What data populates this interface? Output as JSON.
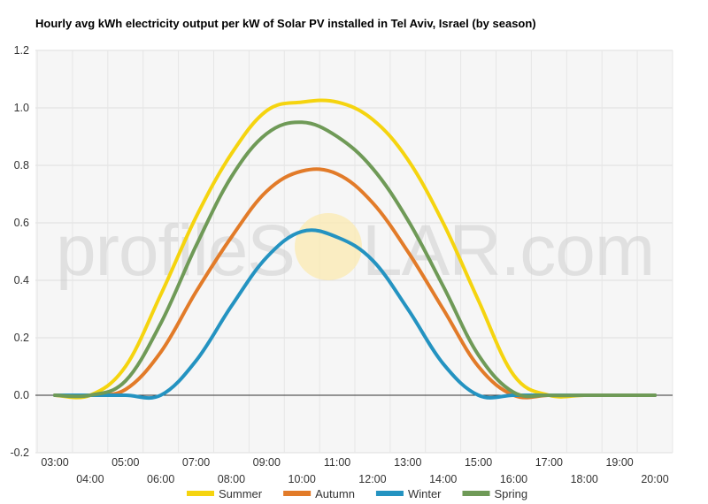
{
  "chart_data": {
    "type": "line",
    "title": "Hourly avg kWh electricity output per kW of Solar PV installed in Tel Aviv, Israel (by season)",
    "xlabel": "",
    "ylabel": "",
    "categories": [
      "03:00",
      "04:00",
      "05:00",
      "06:00",
      "07:00",
      "08:00",
      "09:00",
      "10:00",
      "11:00",
      "12:00",
      "13:00",
      "14:00",
      "15:00",
      "16:00",
      "17:00",
      "18:00",
      "19:00",
      "20:00"
    ],
    "ylim": [
      -0.2,
      1.2
    ],
    "yticks": [
      "-0.2",
      "0.0",
      "0.2",
      "0.4",
      "0.6",
      "0.8",
      "1.0",
      "1.2"
    ],
    "grid": true,
    "legend_position": "bottom",
    "series": [
      {
        "name": "Summer",
        "color": "#f5d40f",
        "values": [
          0.0,
          0.0,
          0.1,
          0.35,
          0.62,
          0.84,
          0.99,
          1.02,
          1.02,
          0.96,
          0.82,
          0.6,
          0.33,
          0.07,
          0.0,
          0.0,
          0.0,
          0.0
        ]
      },
      {
        "name": "Autumn",
        "color": "#e27b29",
        "values": [
          0.0,
          0.0,
          0.02,
          0.15,
          0.36,
          0.55,
          0.71,
          0.78,
          0.77,
          0.67,
          0.5,
          0.3,
          0.1,
          0.0,
          0.0,
          0.0,
          0.0,
          0.0
        ]
      },
      {
        "name": "Winter",
        "color": "#2493c1",
        "values": [
          0.0,
          0.0,
          0.0,
          0.0,
          0.12,
          0.31,
          0.48,
          0.57,
          0.55,
          0.47,
          0.3,
          0.11,
          0.0,
          0.0,
          0.0,
          0.0,
          0.0,
          0.0
        ]
      },
      {
        "name": "Spring",
        "color": "#6f9a57",
        "values": [
          0.0,
          0.0,
          0.05,
          0.25,
          0.52,
          0.76,
          0.91,
          0.95,
          0.9,
          0.79,
          0.61,
          0.38,
          0.14,
          0.01,
          0.0,
          0.0,
          0.0,
          0.0
        ]
      }
    ]
  },
  "watermark": {
    "text_before": "profileS",
    "text_after": "LAR.com",
    "sun_color": "#fbeab0"
  }
}
